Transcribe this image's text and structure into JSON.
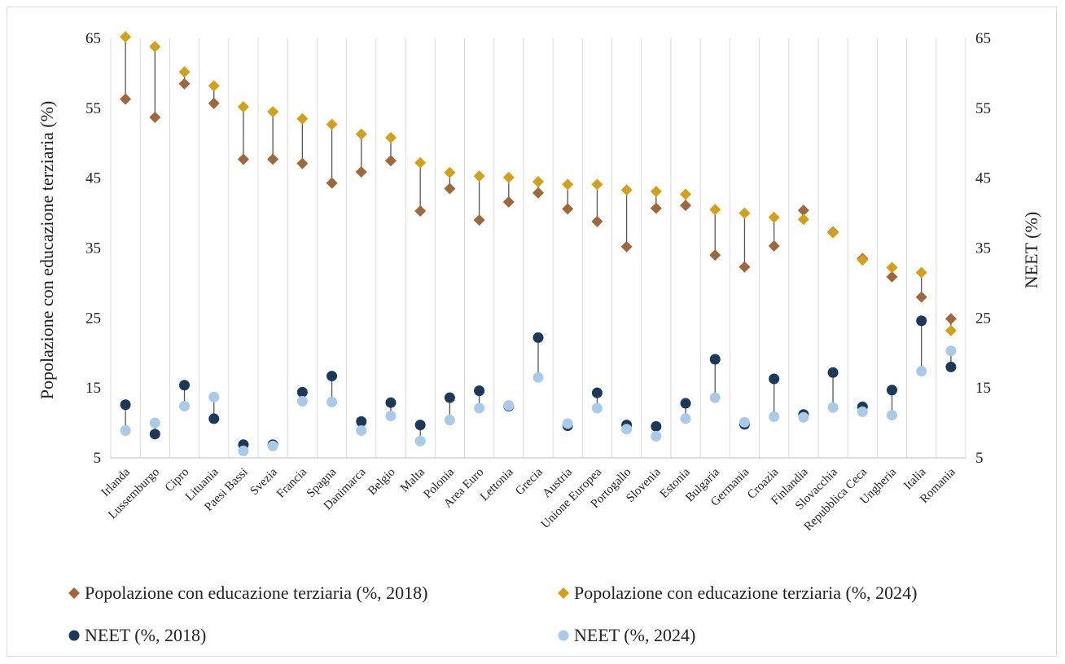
{
  "chart_data": {
    "type": "scatter",
    "title": "",
    "ylabel_left": "Popolazione con educazione terziaria (%)",
    "ylabel_right": "NEET (%)",
    "ylim": [
      5,
      65
    ],
    "yticks": [
      5,
      15,
      25,
      35,
      45,
      55,
      65
    ],
    "ytick_labels": [
      "5",
      "15",
      "25",
      "35",
      "45",
      "55",
      "65"
    ],
    "grid": "vertical",
    "legend_position": "bottom",
    "categories": [
      "Irlanda",
      "Lussemburgo",
      "Cipro",
      "Lituania",
      "Paesi Bassi",
      "Svezia",
      "Francia",
      "Spagna",
      "Danimarca",
      "Belgio",
      "Malta",
      "Polonia",
      "Area Euro",
      "Lettonia",
      "Grecia",
      "Austria",
      "Unione Europea",
      "Portogallo",
      "Slovenia",
      "Estonia",
      "Bulgaria",
      "Germania",
      "Croazia",
      "Finlandia",
      "Slovacchia",
      "Repubblica Ceca",
      "Ungheria",
      "Italia",
      "Romania"
    ],
    "series": [
      {
        "name": "Popolazione con educazione terziaria (%, 2018)",
        "marker": "diamond",
        "color": "#a0673a",
        "values": [
          56.3,
          53.7,
          58.5,
          55.7,
          47.7,
          47.7,
          47.1,
          44.3,
          45.9,
          47.5,
          40.3,
          43.5,
          39.0,
          41.6,
          42.9,
          40.6,
          38.8,
          35.2,
          40.7,
          41.1,
          34.0,
          32.3,
          35.3,
          40.4,
          37.3,
          33.5,
          30.9,
          28.0,
          24.9
        ]
      },
      {
        "name": "Popolazione con educazione terziaria (%, 2024)",
        "marker": "diamond",
        "color": "#d4a017",
        "values": [
          65.2,
          63.8,
          60.2,
          58.2,
          55.2,
          54.5,
          53.5,
          52.7,
          51.3,
          50.8,
          47.2,
          45.8,
          45.3,
          45.1,
          44.5,
          44.1,
          44.1,
          43.3,
          43.1,
          42.7,
          40.5,
          40.0,
          39.4,
          39.1,
          37.2,
          33.3,
          32.2,
          31.5,
          23.2
        ]
      },
      {
        "name": "NEET (%, 2018)",
        "marker": "circle",
        "color": "#1b3a5b",
        "values": [
          12.6,
          8.4,
          15.4,
          10.6,
          6.9,
          6.9,
          14.4,
          16.7,
          10.2,
          12.9,
          9.7,
          13.6,
          14.6,
          12.4,
          22.2,
          9.6,
          14.3,
          9.7,
          9.5,
          12.8,
          19.1,
          9.8,
          16.3,
          11.2,
          17.2,
          12.3,
          14.7,
          24.6,
          18.0
        ]
      },
      {
        "name": "NEET (%, 2024)",
        "marker": "circle",
        "color": "#a9cbea",
        "values": [
          8.9,
          10.0,
          12.4,
          13.7,
          6.0,
          6.7,
          13.1,
          13.0,
          8.9,
          11.0,
          7.4,
          10.4,
          12.1,
          12.5,
          16.5,
          9.9,
          12.1,
          9.1,
          8.1,
          10.6,
          13.6,
          10.1,
          10.9,
          10.8,
          12.2,
          11.6,
          11.1,
          17.4,
          20.3
        ]
      }
    ]
  }
}
